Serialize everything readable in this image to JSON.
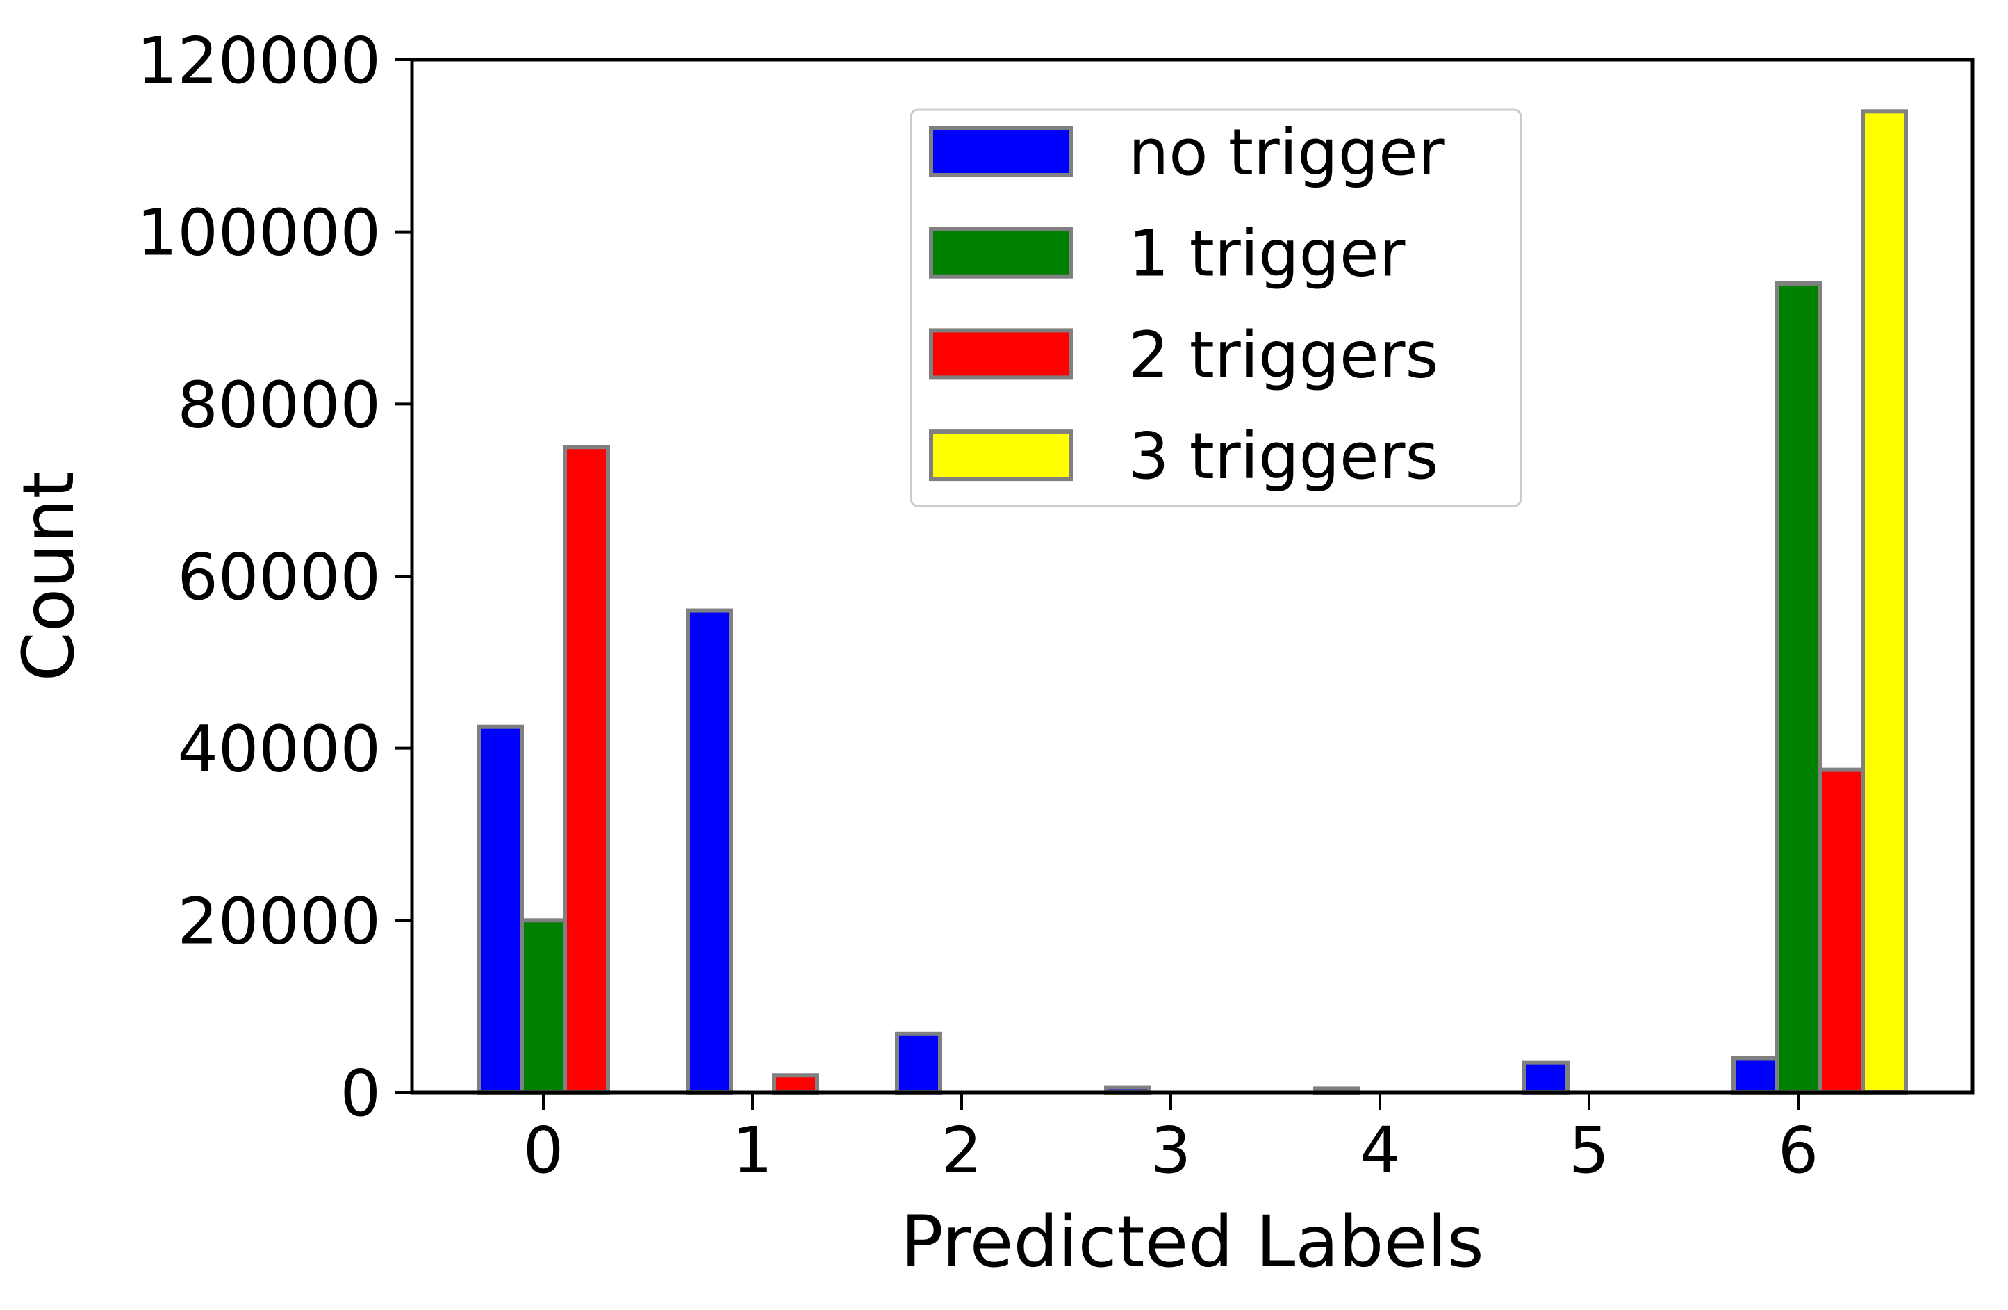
{
  "chart_data": {
    "type": "bar",
    "title": "",
    "xlabel": "Predicted Labels",
    "ylabel": "Count",
    "categories": [
      "0",
      "1",
      "2",
      "3",
      "4",
      "5",
      "6"
    ],
    "series": [
      {
        "name": "no trigger",
        "color": "#0000FF",
        "values": [
          42500,
          56000,
          6800,
          600,
          450,
          3500,
          4000
        ]
      },
      {
        "name": "1 trigger",
        "color": "#008000",
        "values": [
          20000,
          0,
          0,
          0,
          0,
          0,
          94000
        ]
      },
      {
        "name": "2 triggers",
        "color": "#FF0000",
        "values": [
          75000,
          2000,
          0,
          0,
          0,
          0,
          37500
        ]
      },
      {
        "name": "3 triggers",
        "color": "#FFFF00",
        "values": [
          0,
          0,
          0,
          0,
          0,
          0,
          114000
        ]
      }
    ],
    "bar_edge_color": "#808080",
    "axis_color": "#000000",
    "ylim": [
      0,
      120000
    ],
    "yticks": [
      0,
      20000,
      40000,
      60000,
      80000,
      100000,
      120000
    ],
    "ytick_labels": [
      "0",
      "20000",
      "40000",
      "60000",
      "80000",
      "100000",
      "120000"
    ],
    "grid": false,
    "legend": {
      "position": "upper-center-right",
      "border_color": "#CCCCCC",
      "background": "#FFFFFF",
      "entries": [
        "no trigger",
        "1 trigger",
        "2 triggers",
        "3 triggers"
      ]
    }
  }
}
